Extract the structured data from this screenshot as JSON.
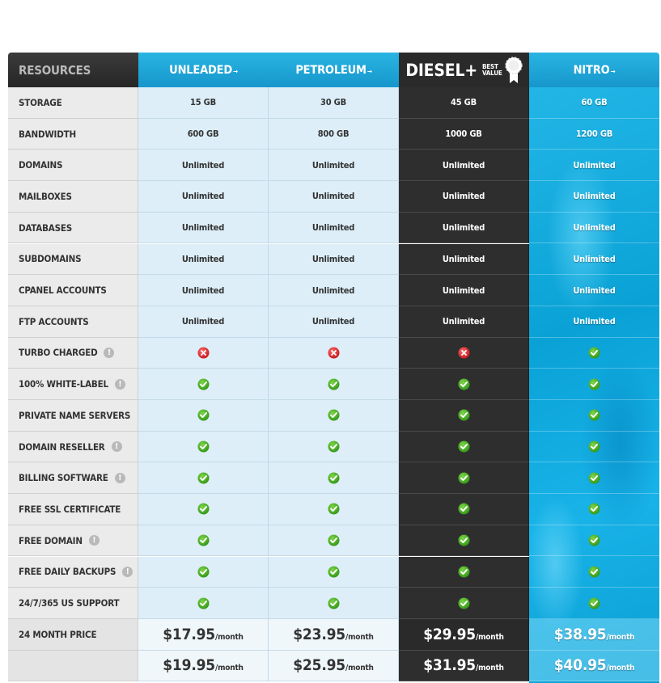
{
  "header": {
    "resources": "RESOURCES",
    "plans": [
      {
        "name": "UNLEADED",
        "arrow": "→"
      },
      {
        "name": "PETROLEUM",
        "arrow": "→"
      },
      {
        "name": "DIESEL+",
        "badge_line1": "BEST",
        "badge_line2": "VALUE"
      },
      {
        "name": "NITRO",
        "arrow": "→"
      }
    ]
  },
  "rows": [
    {
      "label": "STORAGE",
      "info": false,
      "values": [
        "15 GB",
        "30 GB",
        "45 GB",
        "60 GB"
      ]
    },
    {
      "label": "BANDWIDTH",
      "info": false,
      "values": [
        "600 GB",
        "800 GB",
        "1000 GB",
        "1200 GB"
      ]
    },
    {
      "label": "DOMAINS",
      "info": false,
      "values": [
        "Unlimited",
        "Unlimited",
        "Unlimited",
        "Unlimited"
      ]
    },
    {
      "label": "MAILBOXES",
      "info": false,
      "values": [
        "Unlimited",
        "Unlimited",
        "Unlimited",
        "Unlimited"
      ]
    },
    {
      "label": "DATABASES",
      "info": false,
      "values": [
        "Unlimited",
        "Unlimited",
        "Unlimited",
        "Unlimited"
      ]
    },
    {
      "label": "SUBDOMAINS",
      "info": false,
      "values": [
        "Unlimited",
        "Unlimited",
        "Unlimited",
        "Unlimited"
      ]
    },
    {
      "label": "CPANEL ACCOUNTS",
      "info": false,
      "values": [
        "Unlimited",
        "Unlimited",
        "Unlimited",
        "Unlimited"
      ]
    },
    {
      "label": "FTP ACCOUNTS",
      "info": false,
      "values": [
        "Unlimited",
        "Unlimited",
        "Unlimited",
        "Unlimited"
      ]
    },
    {
      "label": "TURBO CHARGED",
      "info": true,
      "values": [
        "no",
        "no",
        "no",
        "yes"
      ]
    },
    {
      "label": "100% WHITE-LABEL",
      "info": true,
      "values": [
        "yes",
        "yes",
        "yes",
        "yes"
      ]
    },
    {
      "label": "PRIVATE NAME SERVERS",
      "info": false,
      "values": [
        "yes",
        "yes",
        "yes",
        "yes"
      ]
    },
    {
      "label": "DOMAIN RESELLER",
      "info": true,
      "values": [
        "yes",
        "yes",
        "yes",
        "yes"
      ]
    },
    {
      "label": "BILLING SOFTWARE",
      "info": true,
      "values": [
        "yes",
        "yes",
        "yes",
        "yes"
      ]
    },
    {
      "label": "FREE SSL CERTIFICATE",
      "info": false,
      "values": [
        "yes",
        "yes",
        "yes",
        "yes"
      ]
    },
    {
      "label": "FREE DOMAIN",
      "info": true,
      "values": [
        "yes",
        "yes",
        "yes",
        "yes"
      ]
    },
    {
      "label": "FREE DAILY BACKUPS",
      "info": true,
      "values": [
        "yes",
        "yes",
        "yes",
        "yes"
      ]
    },
    {
      "label": "24/7/365 US SUPPORT",
      "info": false,
      "values": [
        "yes",
        "yes",
        "yes",
        "yes"
      ]
    }
  ],
  "price_row": {
    "label": "24 MONTH PRICE",
    "unit": "/month",
    "prices": [
      "$17.95",
      "$23.95",
      "$29.95",
      "$38.95"
    ]
  },
  "price_row_partial": {
    "prices": [
      "$19.95",
      "$25.95",
      "$31.95",
      "$40.95"
    ]
  },
  "colors": {
    "header_blue": "#1fa6d8",
    "diesel_dark": "#2a2a2a",
    "check_green": "#3aa51c",
    "cross_red": "#d8232a",
    "nitro_blue": "#0aa2d6"
  },
  "icons": {
    "yes": "check-icon",
    "no": "cross-icon",
    "info": "info-icon"
  }
}
